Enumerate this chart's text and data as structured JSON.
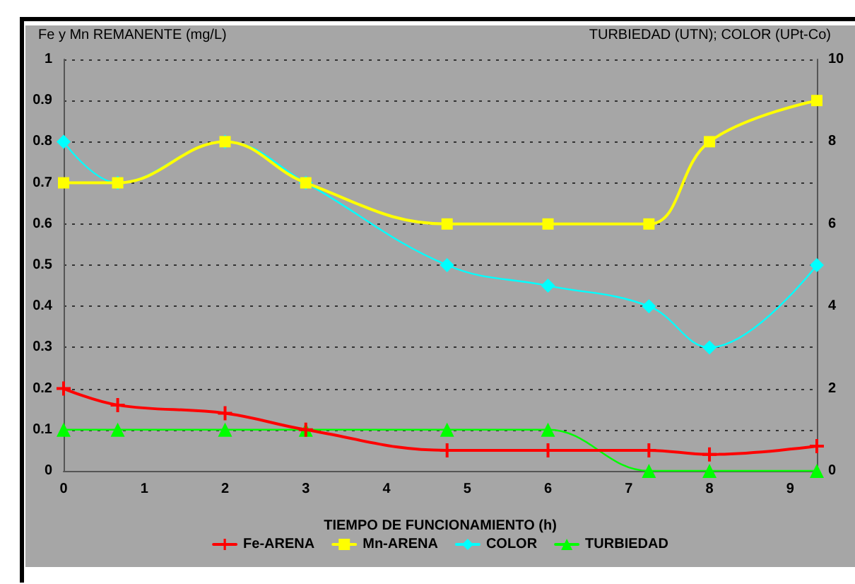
{
  "chart_data": {
    "type": "line",
    "xlabel": "TIEMPO DE FUNCIONAMIENTO (h)",
    "ylabel": "Fe y Mn REMANENTE (mg/L)",
    "y2label": "TURBIEDAD (UTN); COLOR (UPt-Co)",
    "x": [
      0,
      0.67,
      2,
      3,
      4.75,
      6,
      7.25,
      8,
      9.33
    ],
    "xlim": [
      0,
      9.33
    ],
    "xticks": [
      0,
      1,
      2,
      3,
      4,
      5,
      6,
      7,
      8,
      9
    ],
    "ylim": [
      0,
      1
    ],
    "yticks": [
      0,
      0.1,
      0.2,
      0.3,
      0.4,
      0.5,
      0.6,
      0.7,
      0.8,
      0.9,
      1
    ],
    "y2lim": [
      0,
      10
    ],
    "y2ticks": [
      0,
      2,
      4,
      6,
      8,
      10
    ],
    "grid": "y",
    "legend": "bottom",
    "series": [
      {
        "name": "Fe-ARENA",
        "color": "#ff0000",
        "marker": "cross",
        "values": [
          0.2,
          0.16,
          0.14,
          0.1,
          0.05,
          0.05,
          0.05,
          0.04,
          0.06
        ]
      },
      {
        "name": "Mn-ARENA",
        "color": "#ffff00",
        "marker": "square",
        "values": [
          0.7,
          0.7,
          0.8,
          0.7,
          0.6,
          0.6,
          0.6,
          0.8,
          0.9
        ]
      },
      {
        "name": "COLOR",
        "color": "#00ffff",
        "marker": "diamond",
        "axis": "y2",
        "values": [
          8,
          7,
          8,
          7,
          5,
          4.5,
          4,
          3,
          5
        ]
      },
      {
        "name": "TURBIEDAD",
        "color": "#00ff00",
        "marker": "triangle",
        "axis": "y2",
        "values": [
          1,
          1,
          1,
          1,
          1,
          1,
          0,
          0,
          0
        ]
      }
    ]
  }
}
